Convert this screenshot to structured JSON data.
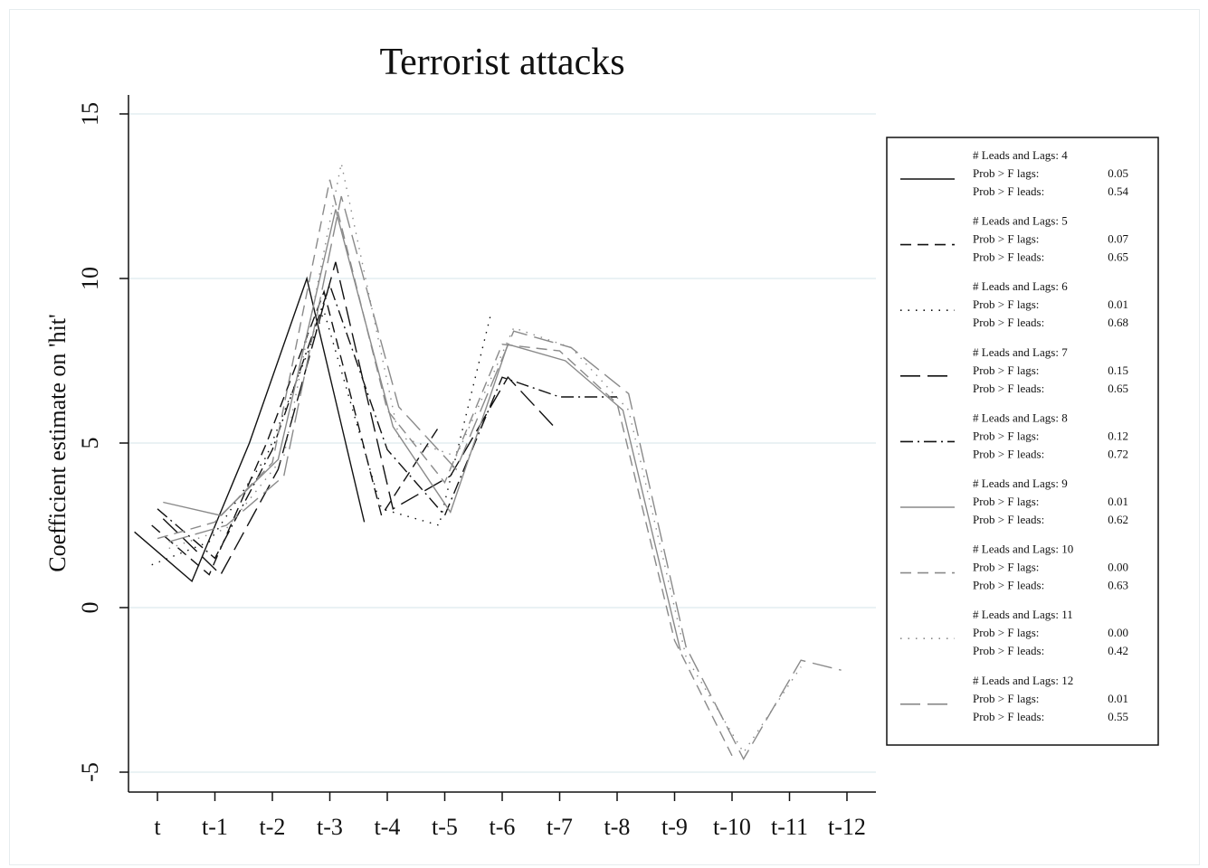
{
  "chart_data": {
    "type": "line",
    "title": "Terrorist attacks",
    "ylabel": "Coefficient estimate on 'hit'",
    "xlabel": "",
    "categories": [
      "t",
      "t-1",
      "t-2",
      "t-3",
      "t-4",
      "t-5",
      "t-6",
      "t-7",
      "t-8",
      "t-9",
      "t-10",
      "t-11",
      "t-12"
    ],
    "y_ticks": [
      "-5",
      "0",
      "5",
      "10",
      "15"
    ],
    "ylim": [
      -5.5,
      15.5
    ],
    "grid": true,
    "legend_position": "right",
    "legend_labels": {
      "leads_lags": "# Leads and Lags:",
      "prob_lags": "Prob > F lags:",
      "prob_leads": "Prob > F leads:"
    },
    "series": [
      {
        "name": "4",
        "prob_lags": "0.05",
        "prob_leads": "0.54",
        "style": "solid",
        "color": "#111111",
        "x": [
          -0.4,
          0.6,
          1.6,
          2.6,
          3.6
        ],
        "y": [
          2.3,
          0.8,
          5.0,
          10.0,
          2.6
        ]
      },
      {
        "name": "5",
        "prob_lags": "0.07",
        "prob_leads": "0.65",
        "style": "dash",
        "color": "#111111",
        "x": [
          -0.1,
          0.9,
          1.9,
          2.9,
          3.9,
          4.9
        ],
        "y": [
          2.5,
          1.0,
          5.0,
          9.6,
          2.8,
          5.5
        ]
      },
      {
        "name": "6",
        "prob_lags": "0.01",
        "prob_leads": "0.68",
        "style": "dot",
        "color": "#111111",
        "x": [
          -0.1,
          0.9,
          1.9,
          2.9,
          3.9,
          4.9,
          5.8
        ],
        "y": [
          1.3,
          2.0,
          4.6,
          9.0,
          3.0,
          2.5,
          8.9
        ]
      },
      {
        "name": "7",
        "prob_lags": "0.15",
        "prob_leads": "0.65",
        "style": "longdash",
        "color": "#111111",
        "x": [
          0.1,
          1.1,
          2.1,
          3.1,
          4.1,
          5.1,
          6.1,
          6.9
        ],
        "y": [
          2.7,
          1.0,
          4.2,
          10.5,
          3.0,
          4.0,
          7.0,
          5.5
        ]
      },
      {
        "name": "8",
        "prob_lags": "0.12",
        "prob_leads": "0.72",
        "style": "dashdot",
        "color": "#111111",
        "x": [
          0.0,
          1.0,
          2.0,
          3.0,
          4.0,
          5.0,
          6.0,
          7.0,
          8.0
        ],
        "y": [
          3.0,
          1.5,
          4.8,
          9.8,
          4.8,
          2.8,
          7.0,
          6.4,
          6.4
        ]
      },
      {
        "name": "9",
        "prob_lags": "0.01",
        "prob_leads": "0.62",
        "style": "solid",
        "color": "#8a8a8a",
        "x": [
          0.1,
          1.1,
          2.1,
          3.1,
          4.1,
          5.1,
          6.1,
          7.1,
          8.1,
          9.1
        ],
        "y": [
          3.2,
          2.8,
          4.5,
          12.1,
          5.5,
          2.9,
          8.0,
          7.5,
          6.0,
          -1.3
        ]
      },
      {
        "name": "10",
        "prob_lags": "0.00",
        "prob_leads": "0.63",
        "style": "dash",
        "color": "#8a8a8a",
        "x": [
          0.0,
          1.0,
          2.0,
          3.0,
          4.0,
          5.0,
          6.0,
          7.0,
          8.0,
          9.0,
          10.0
        ],
        "y": [
          2.1,
          2.6,
          4.4,
          13.0,
          6.0,
          3.8,
          8.0,
          7.8,
          6.2,
          -1.0,
          -4.5
        ]
      },
      {
        "name": "11",
        "prob_lags": "0.00",
        "prob_leads": "0.42",
        "style": "dot",
        "color": "#8a8a8a",
        "x": [
          0.2,
          1.2,
          2.2,
          3.2,
          4.2,
          5.2,
          6.2,
          7.2,
          8.2,
          9.2,
          10.2,
          11.2
        ],
        "y": [
          1.8,
          2.4,
          4.6,
          13.5,
          5.2,
          4.6,
          8.5,
          7.9,
          6.0,
          -1.5,
          -4.4,
          -1.8
        ]
      },
      {
        "name": "12",
        "prob_lags": "0.01",
        "prob_leads": "0.55",
        "style": "longdash",
        "color": "#8a8a8a",
        "x": [
          0.2,
          1.2,
          2.2,
          3.2,
          4.2,
          5.2,
          6.2,
          7.2,
          8.2,
          9.2,
          10.2,
          11.2,
          11.9
        ],
        "y": [
          2.0,
          2.5,
          4.0,
          12.5,
          6.1,
          4.2,
          8.4,
          7.9,
          6.5,
          -1.2,
          -4.6,
          -1.6,
          -1.9
        ]
      }
    ]
  }
}
